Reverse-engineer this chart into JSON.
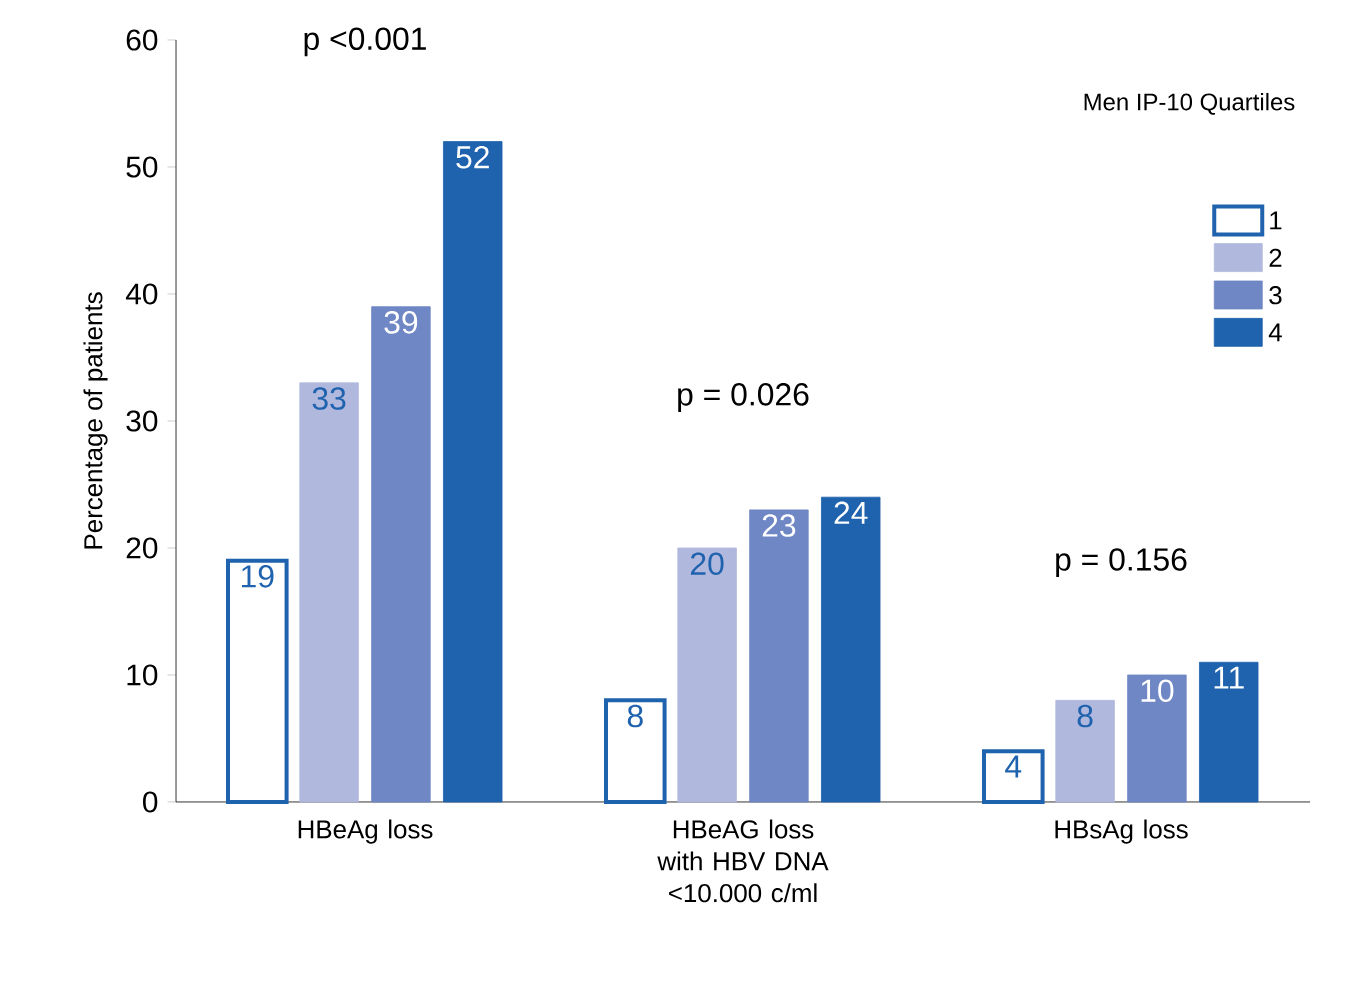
{
  "chart_data": {
    "type": "bar",
    "ylabel": "Percentage of patients",
    "legend_title": "Men IP-10 Quartiles",
    "categories": [
      "HBeAg loss",
      "HBeAG loss with HBV DNA <10.000 c/ml",
      "HBsAg loss"
    ],
    "series": [
      {
        "name": "1",
        "color": "#ffffff",
        "values": [
          19,
          8,
          4
        ]
      },
      {
        "name": "2",
        "color": "#b0b8de",
        "values": [
          33,
          20,
          8
        ]
      },
      {
        "name": "3",
        "color": "#6f87c4",
        "values": [
          39,
          23,
          10
        ]
      },
      {
        "name": "4",
        "color": "#1f62ad",
        "values": [
          52,
          24,
          11
        ]
      }
    ],
    "ylim": [
      0,
      60
    ],
    "yticks": [
      0,
      10,
      20,
      30,
      40,
      50,
      60
    ],
    "data_labels": true,
    "grid": false,
    "legend": "top right",
    "annotations": [
      "p <0.001",
      "p = 0.026",
      "p = 0.156"
    ]
  }
}
